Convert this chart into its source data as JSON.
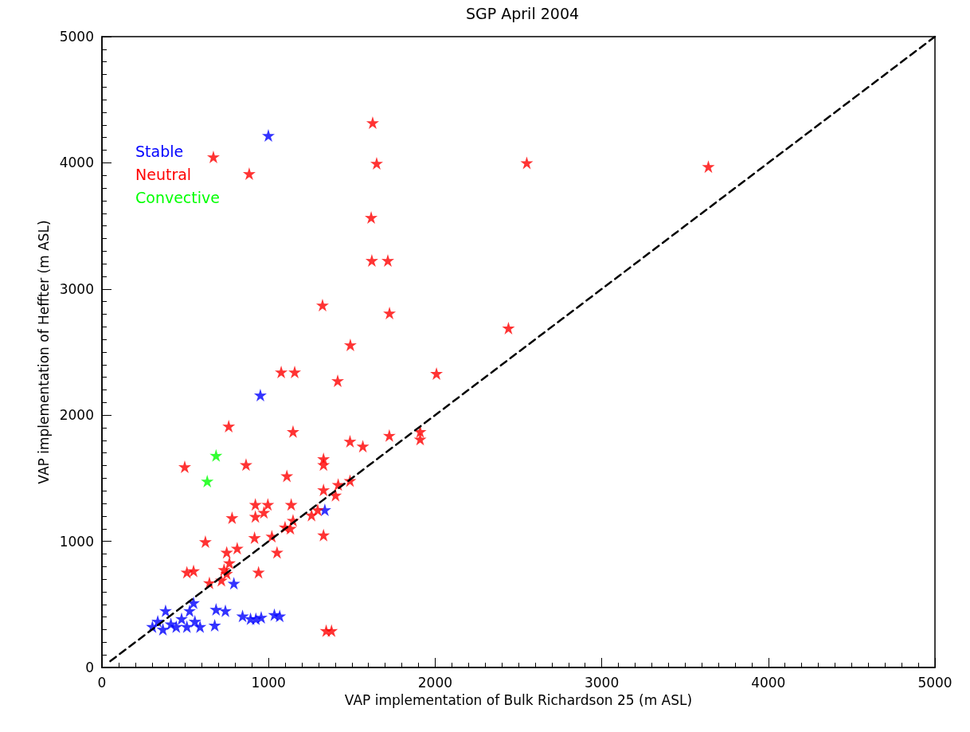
{
  "chart_data": {
    "type": "scatter",
    "title": "SGP April 2004",
    "xlabel": "VAP implementation of Bulk Richardson 25 (m ASL)",
    "ylabel": "VAP implementation of Heffter (m ASL)",
    "xlim": [
      0,
      5000
    ],
    "xticks": [
      0,
      1000,
      2000,
      3000,
      4000,
      5000
    ],
    "ylim": [
      0,
      5000
    ],
    "yticks": [
      0,
      1000,
      2000,
      3000,
      4000,
      5000
    ],
    "grid": false,
    "legend": "top left",
    "marker": "star",
    "series": [
      {
        "name": "Stable",
        "color": "#0000ff",
        "x": [
          999,
          951,
          792,
          1338,
          303,
          335,
          382,
          414,
          478,
          526,
          550,
          558,
          589,
          510,
          366,
          446,
          685,
          741,
          677,
          844,
          924,
          956,
          1035,
          1067,
          892
        ],
        "values": [
          4217,
          2159,
          667,
          1250,
          324,
          366,
          450,
          345,
          387,
          450,
          513,
          366,
          324,
          324,
          303,
          324,
          461,
          450,
          335,
          408,
          387,
          398,
          419,
          408,
          387
        ]
      },
      {
        "name": "Neutral",
        "color": "#ff0000",
        "x": [
          669,
          884,
          1625,
          1649,
          1616,
          1620,
          1716,
          1324,
          1726,
          1491,
          1076,
          1157,
          1415,
          2008,
          2550,
          3640,
          2440,
          761,
          1147,
          1489,
          1566,
          1725,
          1910,
          1910,
          497,
          865,
          1330,
          1330,
          1110,
          1418,
          1489,
          1330,
          1402,
          921,
          996,
          921,
          972,
          1136,
          781,
          1295,
          1258,
          1147,
          1099,
          1131,
          1020,
          916,
          621,
          1330,
          1051,
          812,
          749,
          765,
          733,
          749,
          550,
          510,
          940,
          645,
          717,
          1378,
          1346
        ],
        "values": [
          4047,
          3914,
          4318,
          3996,
          3567,
          3226,
          3226,
          2872,
          2809,
          2557,
          2342,
          2342,
          2273,
          2330,
          4000,
          3970,
          2690,
          1913,
          1870,
          1793,
          1754,
          1839,
          1870,
          1810,
          1591,
          1608,
          1654,
          1608,
          1519,
          1450,
          1481,
          1408,
          1366,
          1292,
          1292,
          1197,
          1229,
          1292,
          1187,
          1250,
          1208,
          1166,
          1113,
          1103,
          1040,
          1029,
          997,
          1050,
          913,
          945,
          913,
          829,
          776,
          745,
          766,
          755,
          755,
          671,
          692,
          292,
          292
        ]
      },
      {
        "name": "Convective",
        "color": "#00ff00",
        "x": [
          685,
          632
        ],
        "values": [
          1681,
          1477
        ]
      },
      {
        "type": "line",
        "color": "#000000",
        "line_style": "dashed",
        "marker": "none",
        "x": [
          50,
          5000
        ],
        "values": [
          50,
          5000
        ]
      }
    ]
  }
}
